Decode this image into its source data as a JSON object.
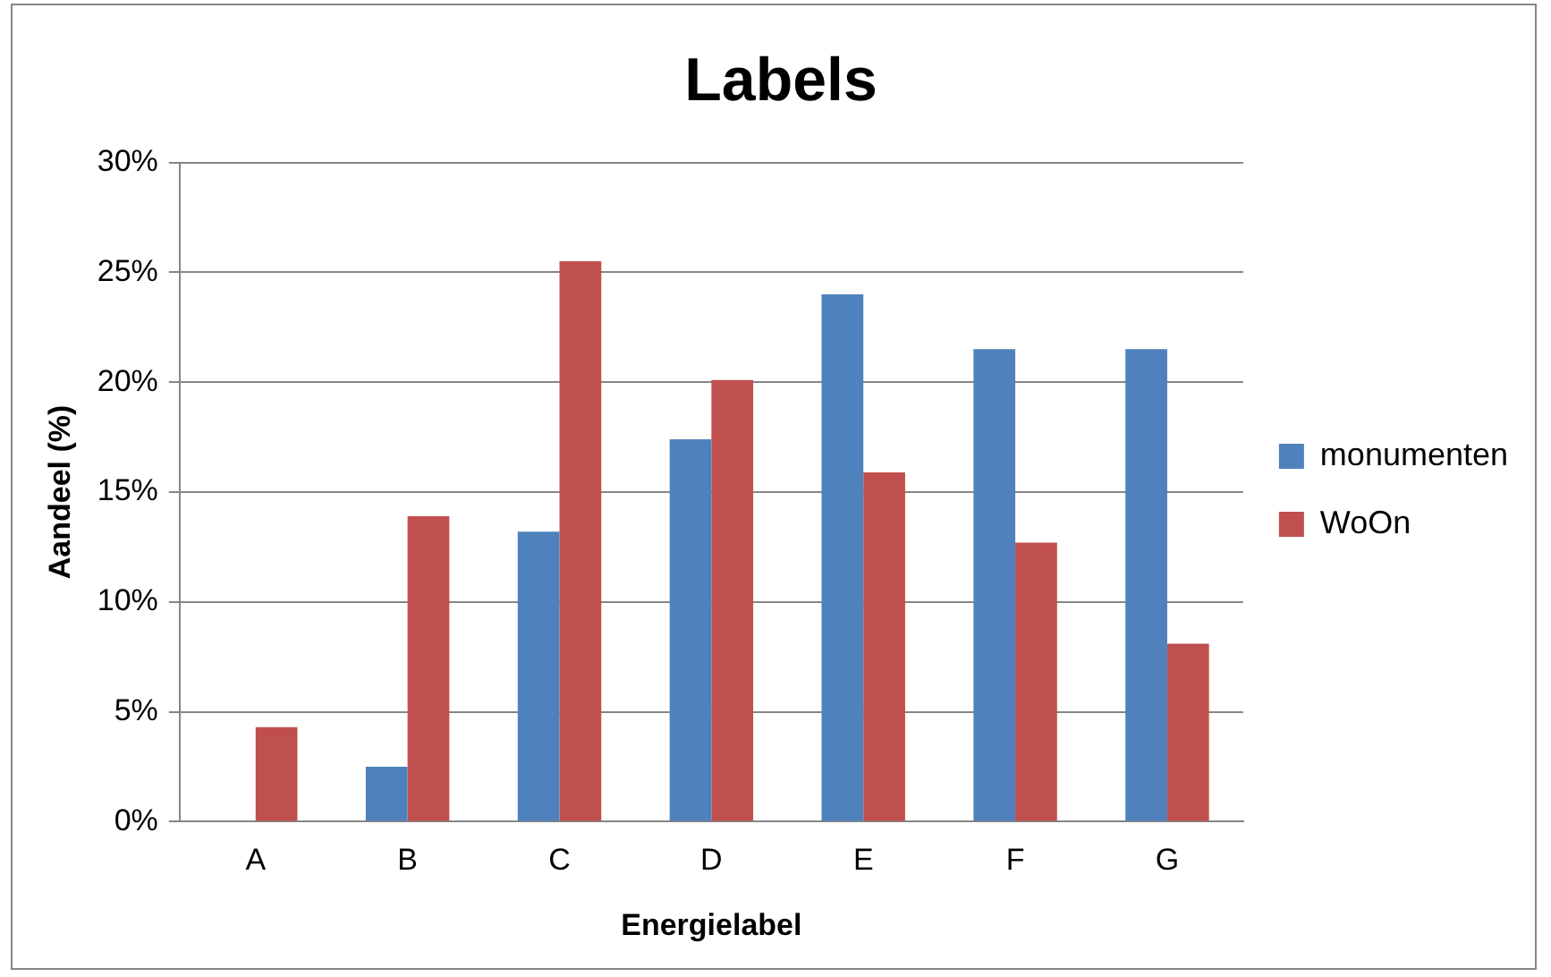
{
  "chart_data": {
    "type": "bar",
    "title": "Labels",
    "xlabel": "Energielabel",
    "ylabel": "Aandeel (%)",
    "categories": [
      "A",
      "B",
      "C",
      "D",
      "E",
      "F",
      "G"
    ],
    "series": [
      {
        "name": "monumenten",
        "color": "#4f81bd",
        "values": [
          0,
          2.5,
          13.2,
          17.4,
          24.0,
          21.5,
          21.5
        ]
      },
      {
        "name": "WoOn",
        "color": "#c0504d",
        "values": [
          4.3,
          13.9,
          25.5,
          20.1,
          15.9,
          12.7,
          8.1
        ]
      }
    ],
    "ylim": [
      0,
      30
    ],
    "yticks": [
      {
        "value": 0,
        "label": "0%"
      },
      {
        "value": 5,
        "label": "5%"
      },
      {
        "value": 10,
        "label": "10%"
      },
      {
        "value": 15,
        "label": "15%"
      },
      {
        "value": 20,
        "label": "20%"
      },
      {
        "value": 25,
        "label": "25%"
      },
      {
        "value": 30,
        "label": "30%"
      }
    ],
    "grid": "y",
    "legend": "right"
  }
}
